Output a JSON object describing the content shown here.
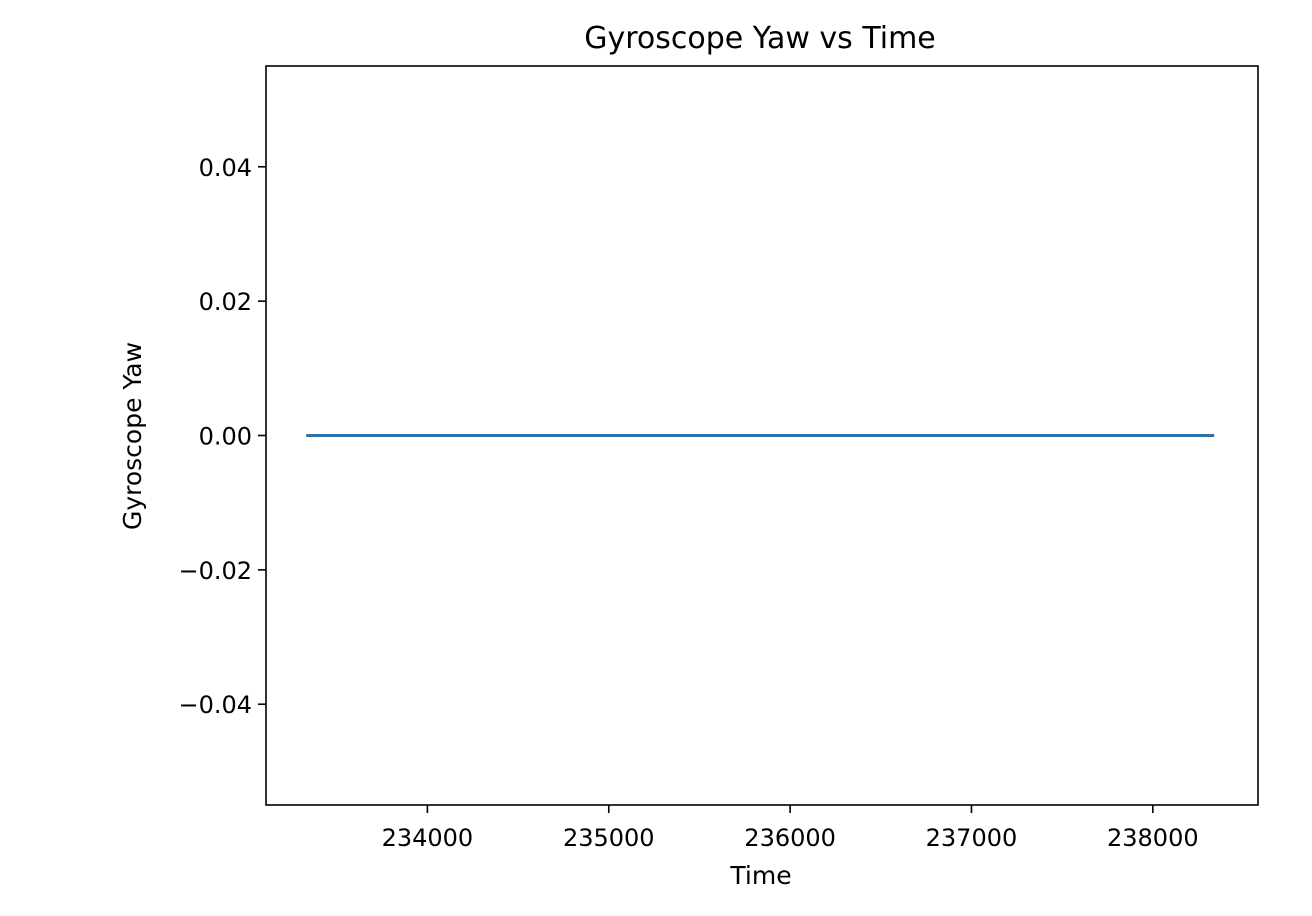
{
  "chart_data": {
    "type": "line",
    "title": "Gyroscope Yaw vs Time",
    "xlabel": "Time",
    "ylabel": "Gyroscope Yaw",
    "xlim": [
      233110,
      238580
    ],
    "ylim": [
      -0.055,
      0.055
    ],
    "x_ticks": [
      234000,
      235000,
      236000,
      237000,
      238000
    ],
    "x_tick_labels": [
      "234000",
      "235000",
      "236000",
      "237000",
      "238000"
    ],
    "y_ticks": [
      -0.04,
      -0.02,
      0.0,
      0.02,
      0.04
    ],
    "y_tick_labels": [
      "−0.04",
      "−0.02",
      "0.00",
      "0.02",
      "0.04"
    ],
    "grid": false,
    "series": [
      {
        "color": "#1f77b4",
        "x": [
          233340,
          238330
        ],
        "y": [
          0.0,
          0.0
        ]
      }
    ]
  }
}
